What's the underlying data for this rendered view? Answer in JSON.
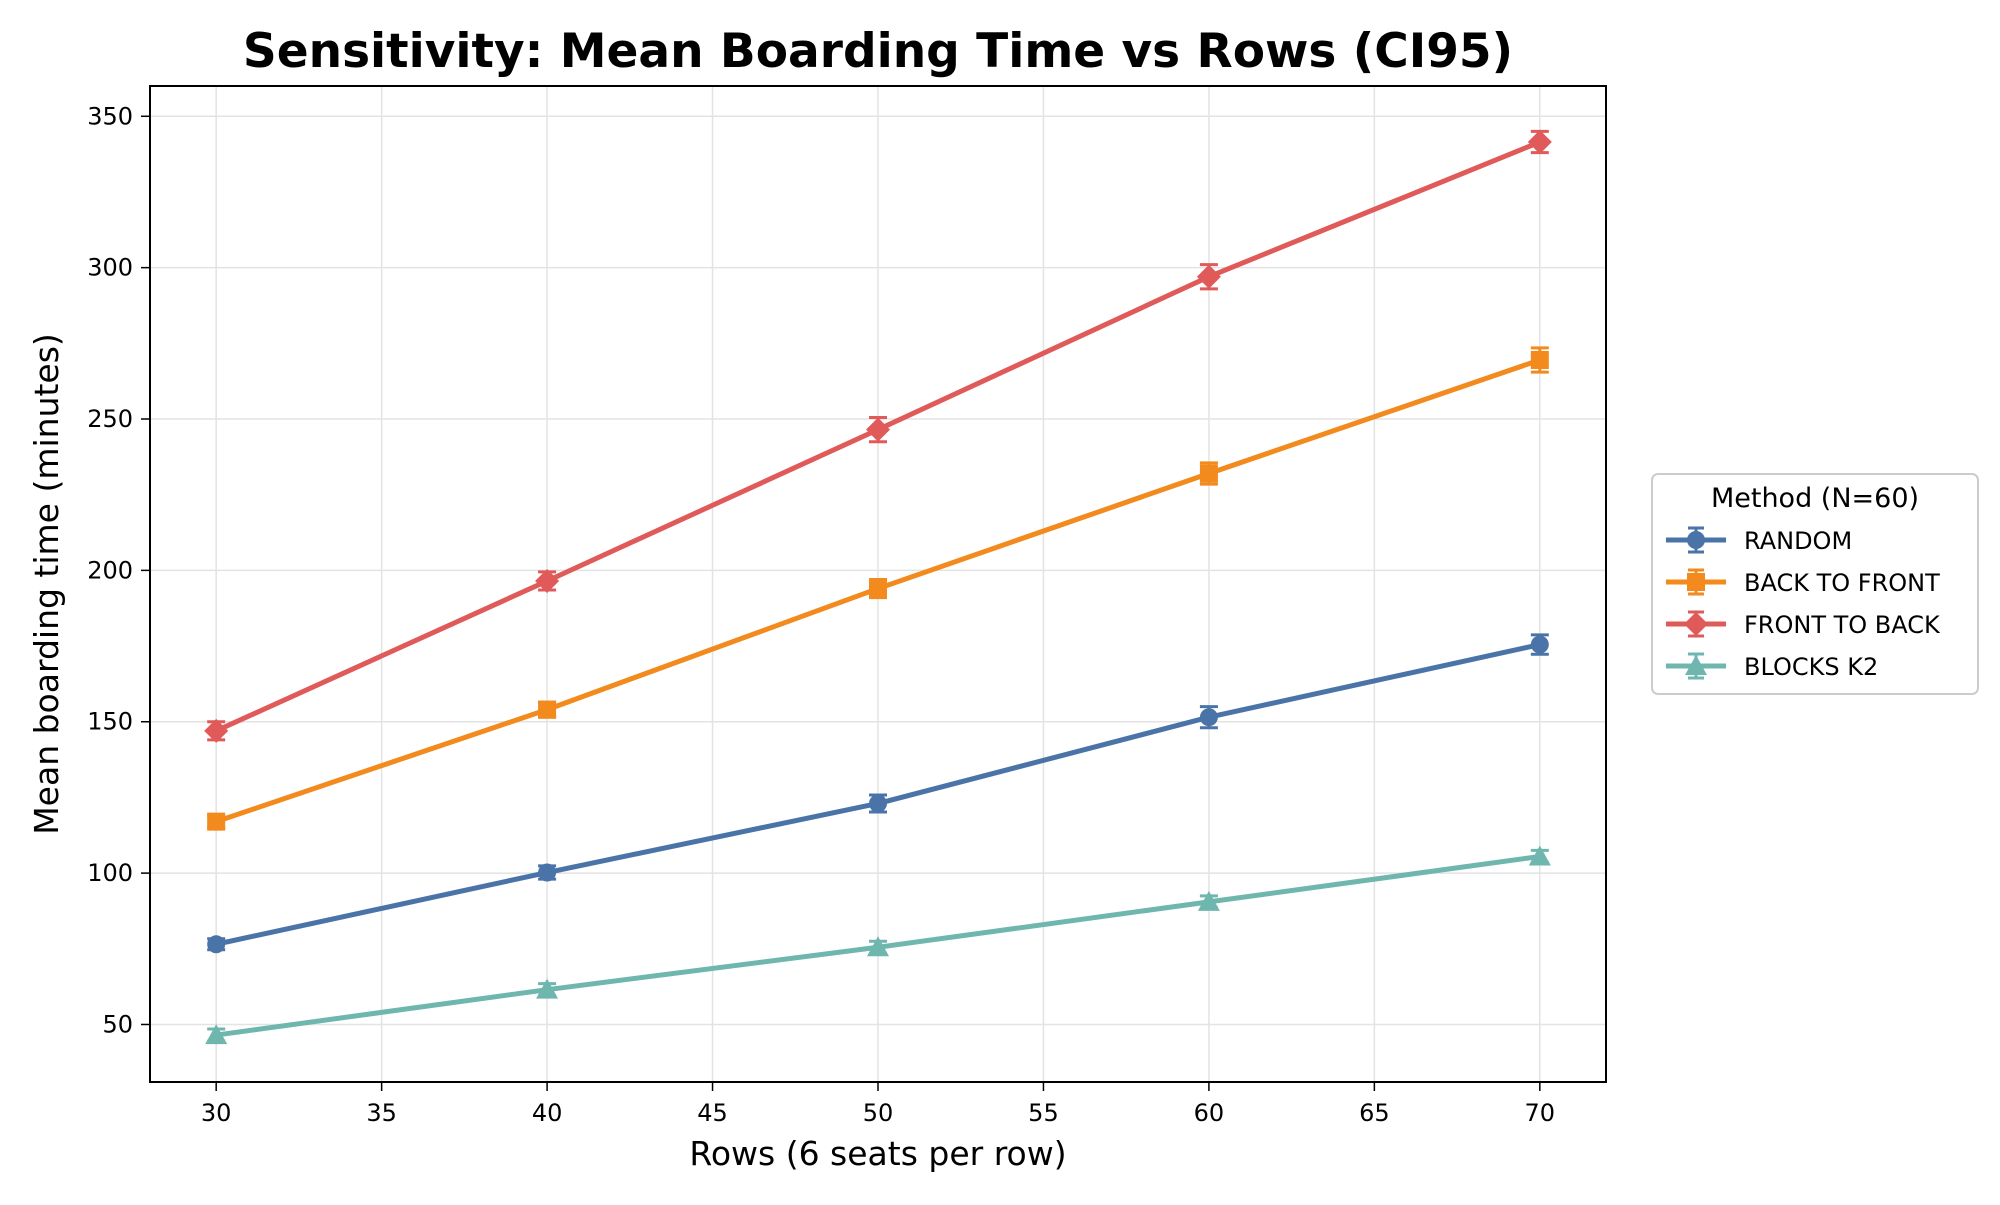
{
  "chart_data": {
    "type": "line",
    "title": "Sensitivity: Mean Boarding Time vs Rows (CI95)",
    "xlabel": "Rows (6 seats per row)",
    "ylabel": "Mean boarding time (minutes)",
    "xlim": [
      28,
      72
    ],
    "ylim": [
      31,
      360
    ],
    "xticks": [
      30,
      35,
      40,
      45,
      50,
      55,
      60,
      65,
      70
    ],
    "yticks": [
      50,
      100,
      150,
      200,
      250,
      300,
      350
    ],
    "grid": true,
    "legend_title": "Method (N=60)",
    "legend_position": "right",
    "x": [
      30,
      40,
      50,
      60,
      70
    ],
    "series": [
      {
        "name": "RANDOM",
        "color": "#4a74a8",
        "marker": "circle",
        "values": [
          76.5,
          100.2,
          123,
          151.5,
          175.5
        ],
        "ci": [
          1.8,
          2.2,
          2.8,
          3.5,
          3.2
        ]
      },
      {
        "name": "BACK TO FRONT",
        "color": "#f28a1e",
        "marker": "square",
        "values": [
          117,
          154,
          194,
          232,
          269.5
        ],
        "ci": [
          2.0,
          2.5,
          3.0,
          3.5,
          4.0
        ]
      },
      {
        "name": "FRONT TO BACK",
        "color": "#e05a5a",
        "marker": "diamond",
        "values": [
          147,
          196.5,
          246.5,
          297,
          341.5
        ],
        "ci": [
          3.0,
          3.0,
          4.0,
          4.0,
          3.5
        ]
      },
      {
        "name": "BLOCKS K2",
        "color": "#6fb7ae",
        "marker": "triangle",
        "values": [
          46.5,
          61.5,
          75.5,
          90.5,
          105.5
        ],
        "ci": [
          2.0,
          2.0,
          2.0,
          2.0,
          2.0
        ]
      }
    ]
  }
}
